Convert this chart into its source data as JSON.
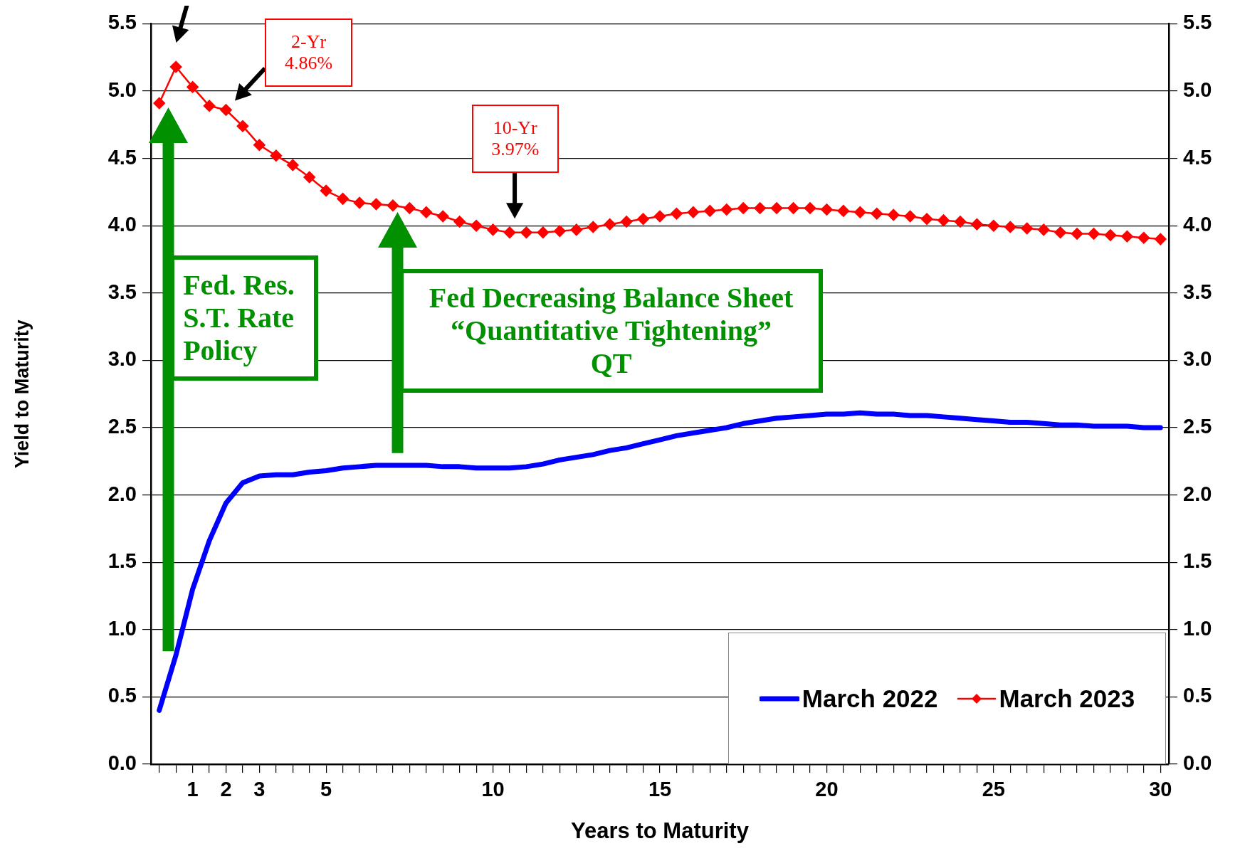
{
  "chart_data": {
    "type": "line",
    "xlabel": "Years to Maturity",
    "ylabel": "Yield to Maturity",
    "x": [
      0,
      0.5,
      1,
      1.5,
      2,
      2.5,
      3,
      3.5,
      4,
      4.5,
      5,
      5.5,
      6,
      6.5,
      7,
      7.5,
      8,
      8.5,
      9,
      9.5,
      10,
      10.5,
      11,
      11.5,
      12,
      12.5,
      13,
      13.5,
      14,
      14.5,
      15,
      15.5,
      16,
      16.5,
      17,
      17.5,
      18,
      18.5,
      19,
      19.5,
      20,
      20.5,
      21,
      21.5,
      22,
      22.5,
      23,
      23.5,
      24,
      24.5,
      25,
      25.5,
      26,
      26.5,
      27,
      27.5,
      28,
      28.5,
      29,
      29.5,
      30
    ],
    "series": [
      {
        "name": "March 2022",
        "color": "#0000ff",
        "marker": "none",
        "values": [
          0.4,
          0.81,
          1.3,
          1.66,
          1.94,
          2.09,
          2.14,
          2.15,
          2.15,
          2.17,
          2.18,
          2.2,
          2.21,
          2.22,
          2.22,
          2.22,
          2.22,
          2.21,
          2.21,
          2.2,
          2.2,
          2.2,
          2.21,
          2.23,
          2.26,
          2.28,
          2.3,
          2.33,
          2.35,
          2.38,
          2.41,
          2.44,
          2.46,
          2.48,
          2.5,
          2.53,
          2.55,
          2.57,
          2.58,
          2.59,
          2.6,
          2.6,
          2.61,
          2.6,
          2.6,
          2.59,
          2.59,
          2.58,
          2.57,
          2.56,
          2.55,
          2.54,
          2.54,
          2.53,
          2.52,
          2.52,
          2.51,
          2.51,
          2.51,
          2.5,
          2.5
        ]
      },
      {
        "name": "March 2023",
        "color": "#ff0000",
        "marker": "diamond",
        "values": [
          4.91,
          5.18,
          5.03,
          4.89,
          4.86,
          4.74,
          4.6,
          4.52,
          4.45,
          4.36,
          4.26,
          4.2,
          4.17,
          4.16,
          4.15,
          4.13,
          4.1,
          4.07,
          4.03,
          4.0,
          3.97,
          3.95,
          3.95,
          3.95,
          3.96,
          3.97,
          3.99,
          4.01,
          4.03,
          4.05,
          4.07,
          4.09,
          4.1,
          4.11,
          4.12,
          4.13,
          4.13,
          4.13,
          4.13,
          4.13,
          4.12,
          4.11,
          4.1,
          4.09,
          4.08,
          4.07,
          4.05,
          4.04,
          4.03,
          4.01,
          4.0,
          3.99,
          3.98,
          3.97,
          3.95,
          3.94,
          3.94,
          3.93,
          3.92,
          3.91,
          3.9
        ]
      }
    ],
    "xlim": [
      -0.25,
      30.25
    ],
    "xticks": [
      {
        "value": 0,
        "label": null
      },
      {
        "value": 0.5,
        "label": null
      },
      1,
      {
        "value": 1.5,
        "label": null
      },
      2,
      {
        "value": 2.5,
        "label": null
      },
      3,
      {
        "value": 3.5,
        "label": null
      },
      {
        "value": 4,
        "label": null
      },
      {
        "value": 4.5,
        "label": null
      },
      5,
      {
        "value": 5.5,
        "label": null
      },
      {
        "value": 6,
        "label": null
      },
      {
        "value": 6.5,
        "label": null
      },
      {
        "value": 7,
        "label": null
      },
      {
        "value": 7.5,
        "label": null
      },
      {
        "value": 8,
        "label": null
      },
      {
        "value": 8.5,
        "label": null
      },
      {
        "value": 9,
        "label": null
      },
      {
        "value": 9.5,
        "label": null
      },
      10,
      {
        "value": 10.5,
        "label": null
      },
      {
        "value": 11,
        "label": null
      },
      {
        "value": 11.5,
        "label": null
      },
      {
        "value": 12,
        "label": null
      },
      {
        "value": 12.5,
        "label": null
      },
      {
        "value": 13,
        "label": null
      },
      {
        "value": 13.5,
        "label": null
      },
      {
        "value": 14,
        "label": null
      },
      {
        "value": 14.5,
        "label": null
      },
      15,
      {
        "value": 15.5,
        "label": null
      },
      {
        "value": 16,
        "label": null
      },
      {
        "value": 16.5,
        "label": null
      },
      {
        "value": 17,
        "label": null
      },
      {
        "value": 17.5,
        "label": null
      },
      {
        "value": 18,
        "label": null
      },
      {
        "value": 18.5,
        "label": null
      },
      {
        "value": 19,
        "label": null
      },
      {
        "value": 19.5,
        "label": null
      },
      20,
      {
        "value": 20.5,
        "label": null
      },
      {
        "value": 21,
        "label": null
      },
      {
        "value": 21.5,
        "label": null
      },
      {
        "value": 22,
        "label": null
      },
      {
        "value": 22.5,
        "label": null
      },
      {
        "value": 23,
        "label": null
      },
      {
        "value": 23.5,
        "label": null
      },
      {
        "value": 24,
        "label": null
      },
      {
        "value": 24.5,
        "label": null
      },
      25,
      {
        "value": 25.5,
        "label": null
      },
      {
        "value": 26,
        "label": null
      },
      {
        "value": 26.5,
        "label": null
      },
      {
        "value": 27,
        "label": null
      },
      {
        "value": 27.5,
        "label": null
      },
      {
        "value": 28,
        "label": null
      },
      {
        "value": 28.5,
        "label": null
      },
      {
        "value": 29,
        "label": null
      },
      {
        "value": 29.5,
        "label": null
      },
      30
    ],
    "ylim": [
      0,
      5.5
    ],
    "yticks": [
      {
        "value": 0,
        "label": "0.0"
      },
      0.5,
      {
        "value": 1,
        "label": "1.0"
      },
      1.5,
      {
        "value": 2,
        "label": "2.0"
      },
      2.5,
      {
        "value": 3,
        "label": "3.0"
      },
      3.5,
      {
        "value": 4,
        "label": "4.0"
      },
      4.5,
      {
        "value": 5,
        "label": "5.0"
      },
      5.5
    ],
    "y2lim": [
      0,
      5.5
    ],
    "y2ticks": [
      {
        "value": 0,
        "label": "0.0"
      },
      0.5,
      {
        "value": 1,
        "label": "1.0"
      },
      1.5,
      {
        "value": 2,
        "label": "2.0"
      },
      2.5,
      {
        "value": 3,
        "label": "3.0"
      },
      3.5,
      {
        "value": 4,
        "label": "4.0"
      },
      4.5,
      {
        "value": 5,
        "label": "5.0"
      },
      5.5
    ],
    "grid": "y",
    "legend": "bottom right",
    "line_style": "solid",
    "annotations": [
      "2-Yr\n4.86%",
      "10-Yr\n3.97%",
      "Fed. Res.\nS.T. Rate\nPolicy",
      "Fed Decreasing Balance Sheet\n“Quantitative Tightening”\nQT"
    ]
  }
}
